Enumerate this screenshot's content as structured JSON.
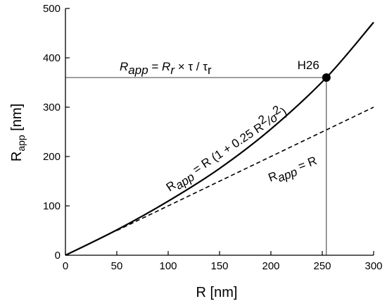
{
  "chart_data": {
    "type": "line",
    "xlabel": {
      "main": "R [nm]"
    },
    "ylabel": {
      "main": "R",
      "sub": "app",
      "rest": " [nm]"
    },
    "xlim": [
      0,
      300
    ],
    "ylim": [
      0,
      500
    ],
    "xticks": [
      0,
      50,
      100,
      150,
      200,
      250,
      300
    ],
    "yticks": [
      0,
      100,
      200,
      300,
      400,
      500
    ],
    "grid": false,
    "series": [
      {
        "style": "solid",
        "formula": "R_app = R (1 + 0.25 R^2 / sigma^2)",
        "x": [
          0,
          50,
          100,
          150,
          200,
          254,
          300
        ],
        "y": [
          0,
          51.2,
          109.5,
          175.7,
          255.6,
          360,
          472
        ]
      },
      {
        "style": "dashed",
        "formula": "R_app = R",
        "x": [
          50,
          300
        ],
        "y": [
          50,
          300
        ]
      }
    ],
    "highlight_point": {
      "label": "H26",
      "x": 254,
      "y": 360
    },
    "reference_lines": {
      "horizontal_y": 360,
      "vertical_x": 254
    },
    "annotations": {
      "top_formula": {
        "lhs": "R",
        "lhs_sub": "app",
        "eq": " = ",
        "rhs": "R",
        "rhs_sub": "r",
        "tail": " × τ / τ",
        "tail_sub": "r"
      },
      "curve_formula": {
        "lhs": "R",
        "lhs_sub": "app",
        "mid": " = R (1 + 0.25 R",
        "sup1": "2",
        "slash": "/σ",
        "sup2": "2",
        "close": ")"
      },
      "line_formula": {
        "lhs": "R",
        "lhs_sub": "app",
        "rhs": " = R"
      }
    }
  }
}
